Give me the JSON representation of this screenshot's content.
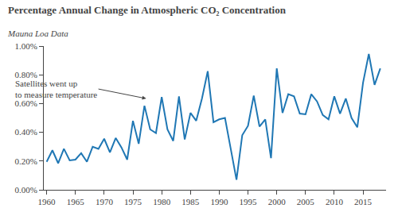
{
  "chart_data": {
    "type": "line",
    "title": "Percentage Annual Change in Atmospheric CO₂ Concentration",
    "subtitle": "Mauna Loa Data",
    "annotations": [
      {
        "text": "Satellites went up\nto measure temperature",
        "x": 1977.3,
        "y": 0.635
      }
    ],
    "x": [
      1960,
      1961,
      1962,
      1963,
      1964,
      1965,
      1966,
      1967,
      1968,
      1969,
      1970,
      1971,
      1972,
      1973,
      1974,
      1975,
      1976,
      1977,
      1978,
      1979,
      1980,
      1981,
      1982,
      1983,
      1984,
      1985,
      1986,
      1987,
      1988,
      1989,
      1990,
      1991,
      1992,
      1993,
      1994,
      1995,
      1996,
      1997,
      1998,
      1999,
      2000,
      2001,
      2002,
      2003,
      2004,
      2005,
      2006,
      2007,
      2008,
      2009,
      2010,
      2011,
      2012,
      2013,
      2014,
      2015,
      2016,
      2017,
      2018
    ],
    "values": [
      0.195,
      0.275,
      0.185,
      0.285,
      0.205,
      0.21,
      0.255,
      0.195,
      0.3,
      0.285,
      0.355,
      0.26,
      0.36,
      0.295,
      0.21,
      0.48,
      0.32,
      0.585,
      0.42,
      0.395,
      0.645,
      0.42,
      0.34,
      0.65,
      0.35,
      0.535,
      0.48,
      0.635,
      0.825,
      0.47,
      0.49,
      0.5,
      0.285,
      0.07,
      0.38,
      0.445,
      0.655,
      0.44,
      0.49,
      0.22,
      0.845,
      0.535,
      0.665,
      0.65,
      0.53,
      0.525,
      0.665,
      0.615,
      0.52,
      0.49,
      0.65,
      0.53,
      0.635,
      0.5,
      0.435,
      0.745,
      0.945,
      0.73,
      0.845
    ],
    "xlim": [
      1959.5,
      2019.0
    ],
    "ylim": [
      0.0,
      1.0
    ],
    "xticks": [
      1960,
      1965,
      1970,
      1975,
      1980,
      1985,
      1990,
      1995,
      2000,
      2005,
      2010,
      2015
    ],
    "yticks": [
      {
        "value": 0.0,
        "label": "0.00%"
      },
      {
        "value": 0.2,
        "label": "0.20%"
      },
      {
        "value": 0.4,
        "label": "0.40%"
      },
      {
        "value": 0.6,
        "label": "0.60%"
      },
      {
        "value": 0.8,
        "label": "0.80%"
      },
      {
        "value": 1.0,
        "label": "1.00%"
      }
    ],
    "grid": false
  }
}
